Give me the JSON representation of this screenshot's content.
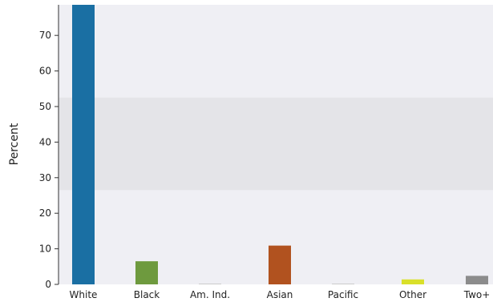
{
  "chart_data": {
    "type": "bar",
    "title": "",
    "xlabel": "",
    "ylabel": "Percent",
    "ylim": [
      0,
      78.6
    ],
    "y_ticks": [
      0,
      10,
      20,
      30,
      40,
      50,
      60,
      70
    ],
    "categories": [
      "White",
      "Black",
      "Am. Ind.",
      "Asian",
      "Pacific",
      "Other",
      "Two+"
    ],
    "values": [
      78.6,
      6.5,
      0.1,
      10.9,
      0.1,
      1.4,
      2.4
    ],
    "bar_colors": [
      "#1a6fa3",
      "#6e9a3e",
      "#9a9a9a",
      "#b1521f",
      "#9a9a9a",
      "#d9e02a",
      "#8c8c8c"
    ],
    "plot_background": "#efeff4",
    "highlight_band": {
      "y_from": 26.5,
      "y_to": 52.5,
      "color": "#e4e4e8"
    },
    "grid": false,
    "legend": "none"
  }
}
